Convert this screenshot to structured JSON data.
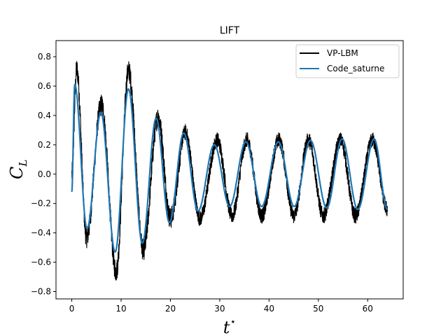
{
  "chart_data": {
    "type": "line",
    "title": "LIFT",
    "xlabel": {
      "main": "t",
      "sup": "⋆"
    },
    "ylabel": {
      "main": "C",
      "sub": "L"
    },
    "xlim": [
      -3.2,
      67.2
    ],
    "ylim": [
      -0.85,
      0.91
    ],
    "xticks": [
      0,
      10,
      20,
      30,
      40,
      50,
      60
    ],
    "yticks": [
      -0.8,
      -0.6,
      -0.4,
      -0.2,
      0.0,
      0.2,
      0.4,
      0.6,
      0.8
    ],
    "ytick_labels": [
      "−0.8",
      "−0.6",
      "−0.4",
      "−0.2",
      "0.0",
      "0.2",
      "0.4",
      "0.6",
      "0.8"
    ],
    "grid": false,
    "legend_position": "top-right",
    "series": [
      {
        "name": "VP-LBM",
        "color": "#000000",
        "style": "noisy-band",
        "x": [
          0,
          1,
          3,
          6,
          9,
          11.5,
          14.5,
          17.5,
          20,
          23,
          26,
          29.5,
          32.5,
          35.5,
          38.5,
          42,
          45,
          48,
          51,
          54.5,
          57.5,
          61,
          64
        ],
        "y": [
          0.0,
          0.83,
          -0.5,
          0.55,
          -0.77,
          0.82,
          -0.6,
          0.45,
          -0.35,
          0.33,
          -0.35,
          0.27,
          -0.33,
          0.27,
          -0.33,
          0.27,
          -0.33,
          0.27,
          -0.33,
          0.27,
          -0.33,
          0.27,
          -0.28
        ]
      },
      {
        "name": "Code_saturne",
        "color": "#1f77b4",
        "style": "smooth",
        "x": [
          0,
          0.6,
          3.1,
          5.9,
          8.8,
          11.5,
          14.3,
          17.1,
          19.8,
          22.7,
          25.6,
          28.9,
          32.0,
          35.3,
          38.5,
          41.9,
          45.1,
          48.4,
          51.7,
          54.8,
          58.0,
          61.3,
          64
        ],
        "y": [
          -0.12,
          0.61,
          -0.37,
          0.42,
          -0.53,
          0.58,
          -0.47,
          0.38,
          -0.33,
          0.28,
          -0.25,
          0.2,
          -0.22,
          0.22,
          -0.22,
          0.22,
          -0.22,
          0.23,
          -0.23,
          0.24,
          -0.24,
          0.24,
          -0.24
        ]
      }
    ]
  }
}
